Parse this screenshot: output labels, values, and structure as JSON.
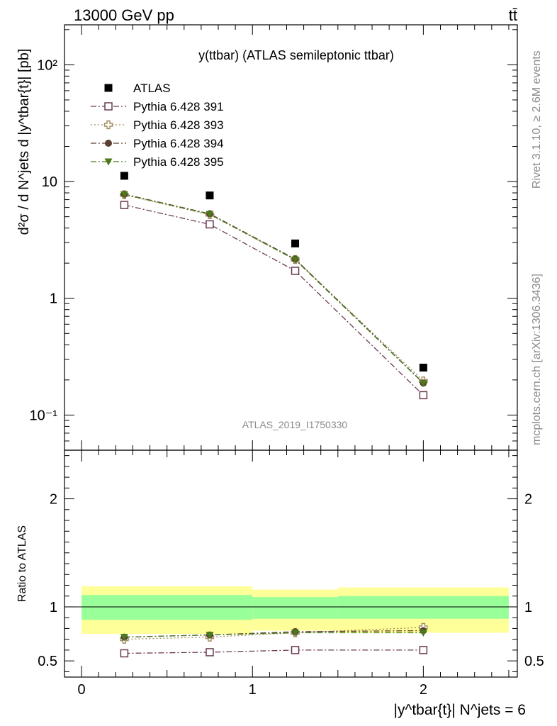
{
  "header": {
    "left": "13000 GeV pp",
    "right": "tt̄"
  },
  "side_labels": {
    "rivet": "Rivet 3.1.10, ≥ 2.6M events",
    "mcplots": "mcplots.cern.ch [arXiv:1306.3436]"
  },
  "plot_title": "y(ttbar) (ATLAS semileptonic ttbar)",
  "watermark": "ATLAS_2019_I1750330",
  "colors": {
    "atlas": "#000000",
    "p391": "#6b3a52",
    "p393": "#a08a5c",
    "p394": "#5a4030",
    "p395": "#4a7a1a",
    "band_outer": "#ffff99",
    "band_inner": "#99ff99"
  },
  "chart_data": [
    {
      "type": "scatter",
      "panel": "main",
      "yscale": "log",
      "xlim": [
        -0.1,
        2.55
      ],
      "ylim": [
        0.05,
        220
      ],
      "ylabel": "d²σ / d N^jets d |y^tbar{t}| [pb]",
      "y_ticks": [
        {
          "value": 0.1,
          "label": "10⁻¹"
        },
        {
          "value": 1,
          "label": "1"
        },
        {
          "value": 10,
          "label": "10"
        },
        {
          "value": 100,
          "label": "10²"
        }
      ],
      "x": [
        0.25,
        0.75,
        1.25,
        2.0
      ],
      "legend_position": "top-left",
      "series": [
        {
          "name": "ATLAS",
          "key": "atlas",
          "marker": "square-filled",
          "line": "none",
          "values": [
            11.2,
            7.6,
            2.95,
            0.255
          ]
        },
        {
          "name": "Pythia 6.428 391",
          "key": "p391",
          "marker": "square-open",
          "line": "dashdot",
          "values": [
            6.3,
            4.3,
            1.72,
            0.148
          ]
        },
        {
          "name": "Pythia 6.428 393",
          "key": "p393",
          "marker": "cross-open",
          "line": "dotted",
          "values": [
            7.7,
            5.2,
            2.15,
            0.196
          ]
        },
        {
          "name": "Pythia 6.428 394",
          "key": "p394",
          "marker": "circle-filled",
          "line": "dashdot",
          "values": [
            7.8,
            5.3,
            2.17,
            0.188
          ]
        },
        {
          "name": "Pythia 6.428 395",
          "key": "p395",
          "marker": "triangle-down-filled",
          "line": "dashdot",
          "values": [
            7.75,
            5.25,
            2.14,
            0.187
          ]
        }
      ]
    },
    {
      "type": "line",
      "panel": "ratio",
      "xlim": [
        -0.1,
        2.55
      ],
      "ylim": [
        0.35,
        2.45
      ],
      "ylabel": "Ratio to ATLAS",
      "xlabel": "|y^tbar{t}| N^jets = 6",
      "x_ticks": [
        {
          "value": 0,
          "label": "0"
        },
        {
          "value": 1,
          "label": "1"
        },
        {
          "value": 2,
          "label": "2"
        }
      ],
      "y_ticks": [
        {
          "value": 0.5,
          "label": "0.5"
        },
        {
          "value": 1,
          "label": "1"
        },
        {
          "value": 2,
          "label": "2"
        }
      ],
      "bands": [
        {
          "x0": 0,
          "x1": 1.0,
          "outer": [
            0.75,
            1.19
          ],
          "inner": [
            0.88,
            1.11
          ]
        },
        {
          "x0": 1.0,
          "x1": 1.5,
          "outer": [
            0.78,
            1.16
          ],
          "inner": [
            0.89,
            1.09
          ]
        },
        {
          "x0": 1.5,
          "x1": 2.5,
          "outer": [
            0.76,
            1.18
          ],
          "inner": [
            0.89,
            1.1
          ]
        }
      ],
      "x": [
        0.25,
        0.75,
        1.25,
        2.0
      ],
      "series": [
        {
          "name": "Pythia 6.428 391",
          "key": "p391",
          "marker": "square-open",
          "line": "dashdot",
          "values": [
            0.57,
            0.58,
            0.6,
            0.6
          ]
        },
        {
          "name": "Pythia 6.428 393",
          "key": "p393",
          "marker": "cross-open",
          "line": "dotted",
          "values": [
            0.7,
            0.72,
            0.76,
            0.81
          ]
        },
        {
          "name": "Pythia 6.428 394",
          "key": "p394",
          "marker": "circle-filled",
          "line": "dashdot",
          "values": [
            0.72,
            0.74,
            0.77,
            0.78
          ]
        },
        {
          "name": "Pythia 6.428 395",
          "key": "p395",
          "marker": "triangle-down-filled",
          "line": "dashdot",
          "values": [
            0.72,
            0.74,
            0.76,
            0.76
          ]
        }
      ]
    }
  ]
}
